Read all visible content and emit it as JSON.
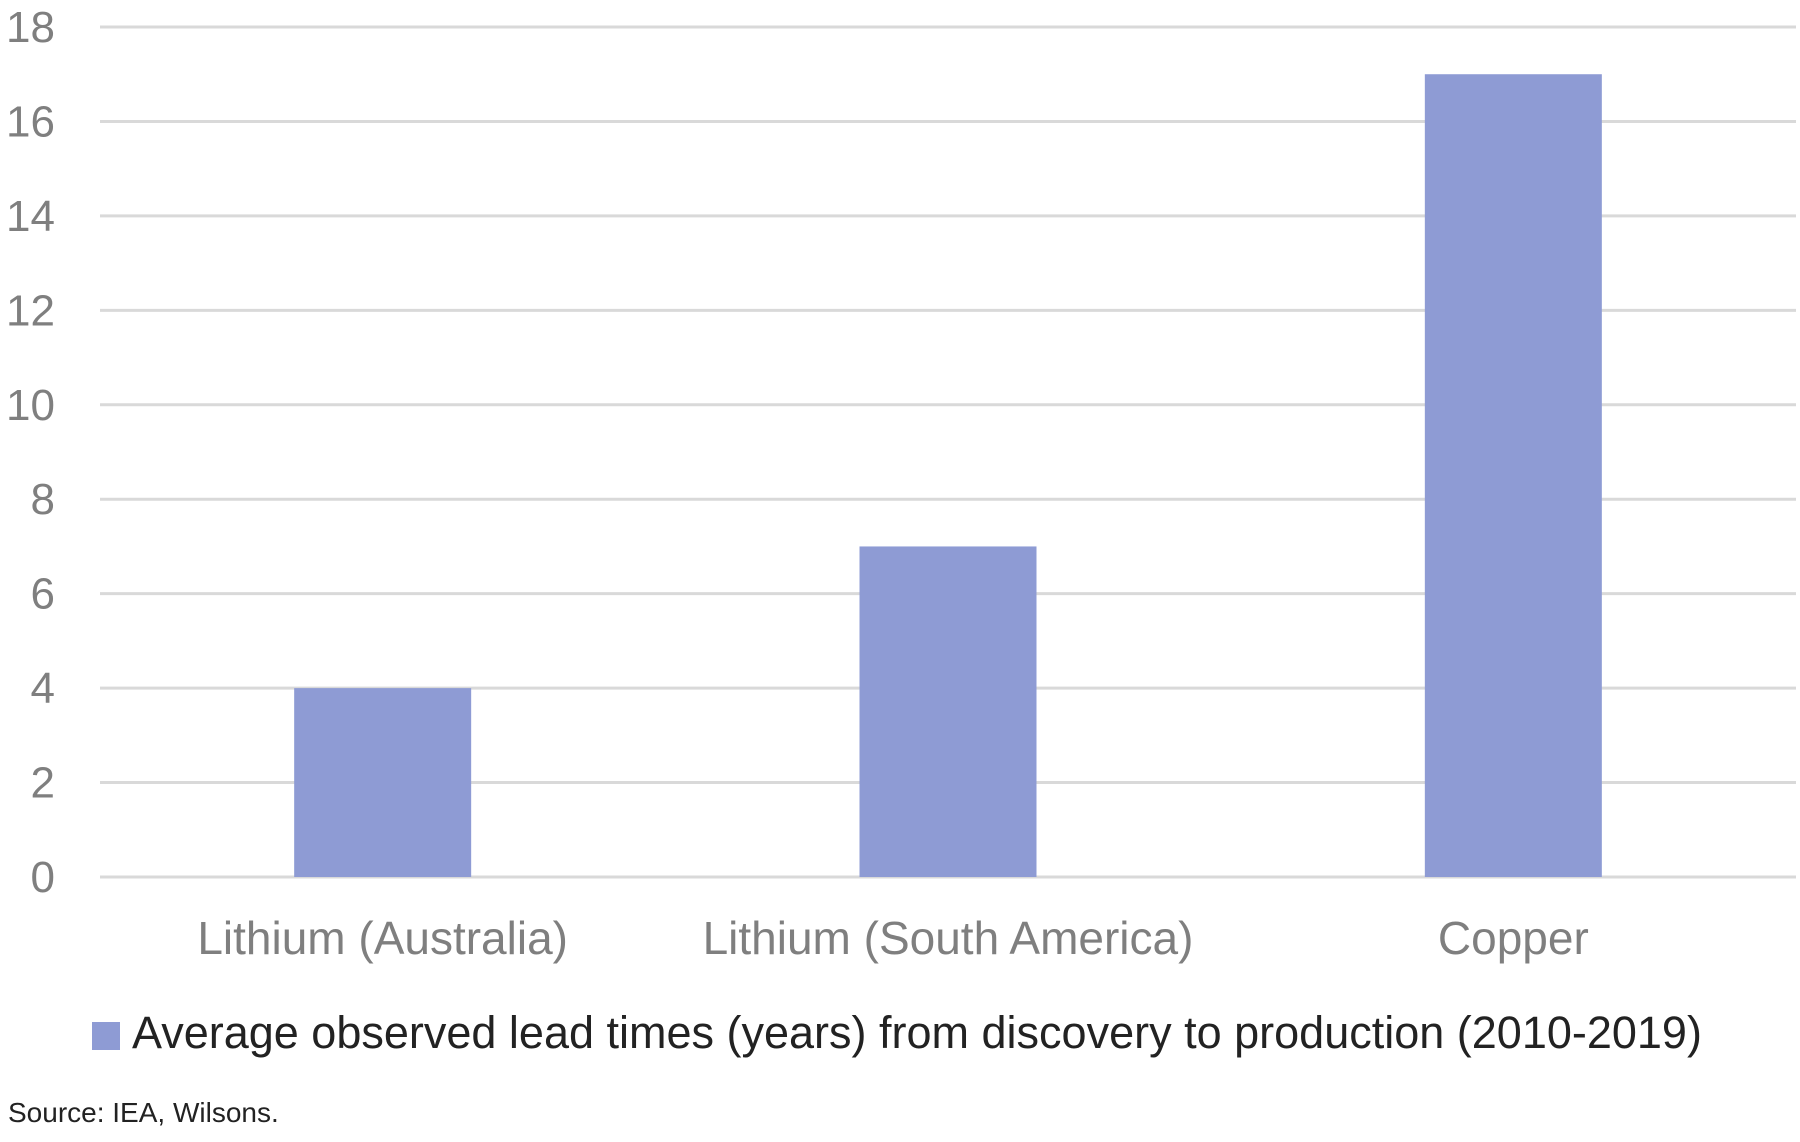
{
  "chart_data": {
    "type": "bar",
    "categories": [
      "Lithium (Australia)",
      "Lithium (South America)",
      "Copper"
    ],
    "series": [
      {
        "name": "Average observed lead times (years) from discovery to production (2010-2019)",
        "values": [
          4,
          7,
          17
        ],
        "color": "#8e9bd4"
      }
    ],
    "ylim": [
      0,
      18
    ],
    "y_ticks": [
      0,
      2,
      4,
      6,
      8,
      10,
      12,
      14,
      16,
      18
    ],
    "grid": true,
    "legend_position": "bottom",
    "title": "",
    "xlabel": "",
    "ylabel": ""
  },
  "source": "Source: IEA, Wilsons.",
  "colors": {
    "bar": "#8e9bd4",
    "grid": "#d9d9d9",
    "axis_text": "#7f7f7f",
    "text": "#222222"
  }
}
